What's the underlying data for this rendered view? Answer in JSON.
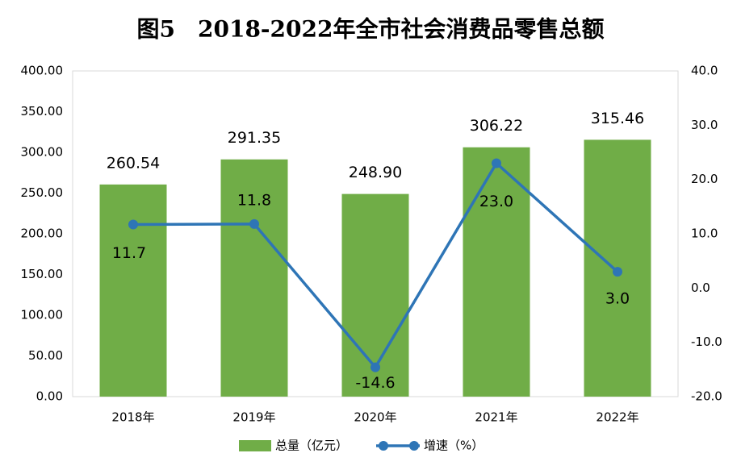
{
  "chart_data": {
    "type": "bar-line",
    "title": "图5　2018-2022年全市社会消费品零售总额",
    "categories": [
      "2018年",
      "2019年",
      "2020年",
      "2021年",
      "2022年"
    ],
    "series": [
      {
        "name": "总量（亿元）",
        "type": "bar",
        "color": "#70ad47",
        "axis": "y",
        "values": [
          260.54,
          291.35,
          248.9,
          306.22,
          315.46
        ],
        "value_labels": [
          "260.54",
          "291.35",
          "248.90",
          "306.22",
          "315.46"
        ]
      },
      {
        "name": "增速（%）",
        "type": "line",
        "color": "#2e75b6",
        "axis": "y2",
        "values": [
          11.7,
          11.8,
          -14.6,
          23.0,
          3.0
        ],
        "value_labels": [
          "11.7",
          "11.8",
          "-14.6",
          "23.0",
          "3.0"
        ]
      }
    ],
    "ylim": [
      0,
      400
    ],
    "yticks": [
      {
        "value": 0,
        "label": "0.00"
      },
      {
        "value": 50,
        "label": "50.00"
      },
      {
        "value": 100,
        "label": "100.00"
      },
      {
        "value": 150,
        "label": "150.00"
      },
      {
        "value": 200,
        "label": "200.00"
      },
      {
        "value": 250,
        "label": "250.00"
      },
      {
        "value": 300,
        "label": "300.00"
      },
      {
        "value": 350,
        "label": "350.00"
      },
      {
        "value": 400,
        "label": "400.00"
      }
    ],
    "y2lim": [
      -20,
      40
    ],
    "y2ticks": [
      {
        "value": -20,
        "label": "-20.0"
      },
      {
        "value": -10,
        "label": "-10.0"
      },
      {
        "value": 0,
        "label": "0.0"
      },
      {
        "value": 10,
        "label": "10.0"
      },
      {
        "value": 20,
        "label": "20.0"
      },
      {
        "value": 30,
        "label": "30.0"
      },
      {
        "value": 40,
        "label": "40.0"
      }
    ],
    "grid": false,
    "legend": "bottom"
  }
}
